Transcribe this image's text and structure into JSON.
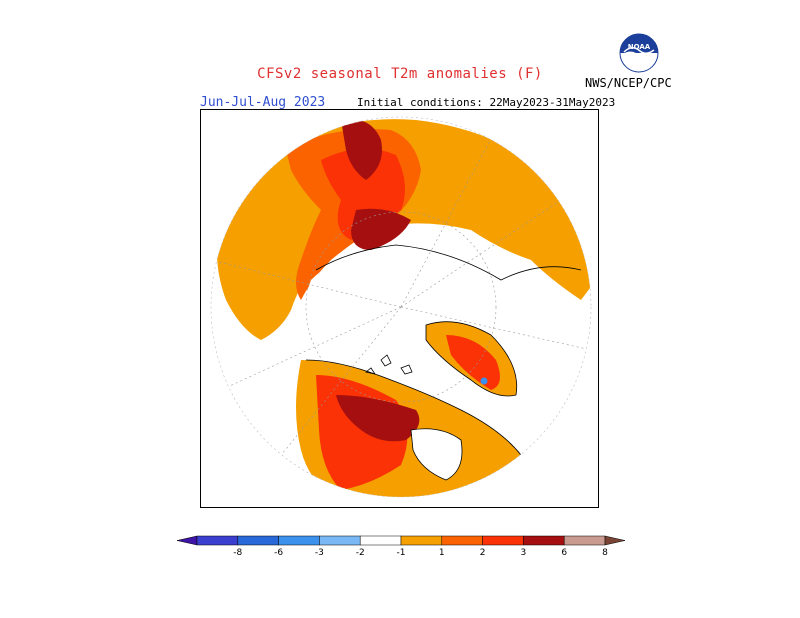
{
  "header": {
    "title": "CFSv2 seasonal T2m anomalies (F)",
    "season": "Jun-Jul-Aug 2023",
    "initial_conditions": "Initial conditions: 22May2023-31May2023",
    "agency": "NWS/NCEP/CPC",
    "logo_text": "NOAA"
  },
  "legend": {
    "bins": [
      {
        "color": "#3d14a6"
      },
      {
        "color": "#3b3fcf"
      },
      {
        "color": "#2868d8"
      },
      {
        "color": "#3c91ec"
      },
      {
        "color": "#7ab8f5"
      },
      {
        "color": "#ffffff"
      },
      {
        "color": "#f5a000"
      },
      {
        "color": "#fb6300"
      },
      {
        "color": "#fa3205"
      },
      {
        "color": "#a50f0f"
      },
      {
        "color": "#c89a90"
      },
      {
        "color": "#7a4434"
      }
    ],
    "ticks": [
      "-8",
      "-6",
      "-3",
      "-2",
      "-1",
      "1",
      "2",
      "3",
      "6",
      "8"
    ]
  },
  "map": {
    "projection": "north-polar-stereographic",
    "colors": {
      "warm1": "#f5a000",
      "warm2": "#fb6300",
      "warm3": "#fa3205",
      "warm4": "#a50f0f",
      "cool": "#3c91ec"
    }
  }
}
